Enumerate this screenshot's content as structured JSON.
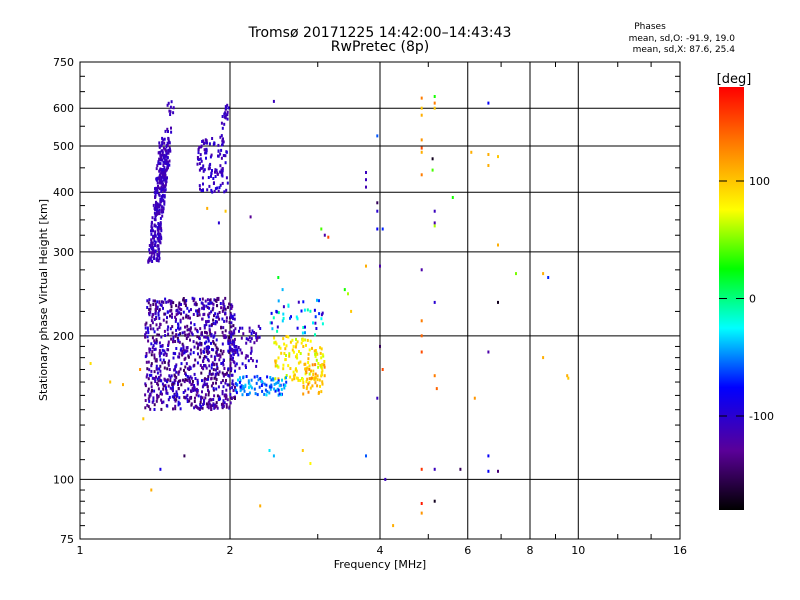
{
  "header": {
    "title": "Tromsø 20171225 14:42:00–14:43:43",
    "subtitle": "RwPretec (8p)",
    "phase_heading": "Phases",
    "stats": [
      "mean, sd,O:  -91.9, 19.0",
      "mean, sd,X:  87.6, 25.4"
    ]
  },
  "chart_data": {
    "type": "scatter",
    "title": "Tromsø 20171225 14:42:00–14:43:43",
    "subtitle": "RwPretec (8p)",
    "xlabel": "Frequency [MHz]",
    "ylabel": "Stationary phase Virtual Height [km]",
    "xscale": "log",
    "yscale": "log",
    "xlim": [
      1,
      16
    ],
    "ylim": [
      75,
      750
    ],
    "xticks": [
      1,
      2,
      4,
      6,
      8,
      10,
      16
    ],
    "yticks": [
      75,
      100,
      200,
      300,
      400,
      500,
      600,
      750
    ],
    "grid": true,
    "colorbar": {
      "label": "[deg]",
      "range": [
        -180,
        180
      ],
      "ticks": [
        100,
        0,
        -100
      ],
      "colors": [
        "#000000",
        "#5a0098",
        "#0000ff",
        "#00ffff",
        "#00ff00",
        "#ffff00",
        "#ff8000",
        "#ff0000"
      ]
    },
    "clusters": [
      {
        "x": [
          1.37,
          1.52
        ],
        "y": [
          285,
          520
        ],
        "phase": [
          -120,
          -100
        ],
        "n": 320
      },
      {
        "x": [
          1.45,
          1.55
        ],
        "y": [
          400,
          630
        ],
        "phase": [
          -120,
          -100
        ],
        "n": 40
      },
      {
        "x": [
          1.72,
          1.98
        ],
        "y": [
          400,
          520
        ],
        "phase": [
          -120,
          -95
        ],
        "n": 110
      },
      {
        "x": [
          1.9,
          2.0
        ],
        "y": [
          520,
          610
        ],
        "phase": [
          -120,
          -100
        ],
        "n": 20
      },
      {
        "x": [
          1.35,
          2.05
        ],
        "y": [
          140,
          240
        ],
        "phase": [
          -150,
          -90
        ],
        "n": 900
      },
      {
        "x": [
          2.0,
          2.3
        ],
        "y": [
          170,
          210
        ],
        "phase": [
          -130,
          -90
        ],
        "n": 70
      },
      {
        "x": [
          2.45,
          3.1
        ],
        "y": [
          160,
          200
        ],
        "phase": [
          60,
          110
        ],
        "n": 120
      },
      {
        "x": [
          2.8,
          3.1
        ],
        "y": [
          150,
          175
        ],
        "phase": [
          85,
          130
        ],
        "n": 40
      },
      {
        "x": [
          2.05,
          2.6
        ],
        "y": [
          150,
          165
        ],
        "phase": [
          -80,
          -30
        ],
        "n": 90
      },
      {
        "x": [
          2.4,
          3.1
        ],
        "y": [
          200,
          240
        ],
        "phase": [
          -110,
          0
        ],
        "n": 45
      }
    ],
    "points": [
      {
        "x": 1.05,
        "y": 175,
        "phase": 90
      },
      {
        "x": 1.15,
        "y": 160,
        "phase": 100
      },
      {
        "x": 1.22,
        "y": 158,
        "phase": 110
      },
      {
        "x": 1.32,
        "y": 170,
        "phase": 120
      },
      {
        "x": 1.34,
        "y": 134,
        "phase": 100
      },
      {
        "x": 1.39,
        "y": 95,
        "phase": 110
      },
      {
        "x": 1.45,
        "y": 105,
        "phase": -90
      },
      {
        "x": 1.62,
        "y": 112,
        "phase": -150
      },
      {
        "x": 1.8,
        "y": 370,
        "phase": 110
      },
      {
        "x": 1.9,
        "y": 345,
        "phase": -100
      },
      {
        "x": 1.96,
        "y": 365,
        "phase": 100
      },
      {
        "x": 2.2,
        "y": 355,
        "phase": -130
      },
      {
        "x": 2.3,
        "y": 88,
        "phase": 110
      },
      {
        "x": 2.4,
        "y": 115,
        "phase": -30
      },
      {
        "x": 2.45,
        "y": 112,
        "phase": -40
      },
      {
        "x": 2.5,
        "y": 265,
        "phase": 20
      },
      {
        "x": 2.55,
        "y": 250,
        "phase": -40
      },
      {
        "x": 2.45,
        "y": 620,
        "phase": -110
      },
      {
        "x": 2.8,
        "y": 115,
        "phase": 100
      },
      {
        "x": 2.9,
        "y": 108,
        "phase": 80
      },
      {
        "x": 3.05,
        "y": 335,
        "phase": 40
      },
      {
        "x": 3.1,
        "y": 325,
        "phase": -120
      },
      {
        "x": 3.15,
        "y": 322,
        "phase": 150
      },
      {
        "x": 3.4,
        "y": 250,
        "phase": 30
      },
      {
        "x": 3.45,
        "y": 245,
        "phase": 60
      },
      {
        "x": 3.5,
        "y": 225,
        "phase": 100
      },
      {
        "x": 3.75,
        "y": 440,
        "phase": -110
      },
      {
        "x": 3.75,
        "y": 425,
        "phase": -110
      },
      {
        "x": 3.75,
        "y": 410,
        "phase": -115
      },
      {
        "x": 3.75,
        "y": 280,
        "phase": 110
      },
      {
        "x": 3.75,
        "y": 112,
        "phase": -60
      },
      {
        "x": 3.95,
        "y": 525,
        "phase": -60
      },
      {
        "x": 3.95,
        "y": 380,
        "phase": -150
      },
      {
        "x": 3.95,
        "y": 365,
        "phase": -100
      },
      {
        "x": 3.95,
        "y": 335,
        "phase": -80
      },
      {
        "x": 3.95,
        "y": 148,
        "phase": -110
      },
      {
        "x": 4.0,
        "y": 280,
        "phase": -120
      },
      {
        "x": 4.0,
        "y": 190,
        "phase": -150
      },
      {
        "x": 4.05,
        "y": 170,
        "phase": 150
      },
      {
        "x": 4.05,
        "y": 335,
        "phase": -70
      },
      {
        "x": 4.1,
        "y": 100,
        "phase": -110
      },
      {
        "x": 4.25,
        "y": 80,
        "phase": 110
      },
      {
        "x": 4.85,
        "y": 630,
        "phase": 130
      },
      {
        "x": 4.85,
        "y": 600,
        "phase": 100
      },
      {
        "x": 4.85,
        "y": 580,
        "phase": 110
      },
      {
        "x": 4.85,
        "y": 515,
        "phase": 120
      },
      {
        "x": 4.85,
        "y": 495,
        "phase": 150
      },
      {
        "x": 4.85,
        "y": 485,
        "phase": 110
      },
      {
        "x": 4.85,
        "y": 435,
        "phase": 130
      },
      {
        "x": 4.85,
        "y": 275,
        "phase": -120
      },
      {
        "x": 4.85,
        "y": 215,
        "phase": 130
      },
      {
        "x": 4.85,
        "y": 200,
        "phase": 140
      },
      {
        "x": 4.85,
        "y": 185,
        "phase": 150
      },
      {
        "x": 4.85,
        "y": 105,
        "phase": 160
      },
      {
        "x": 4.85,
        "y": 89,
        "phase": 170
      },
      {
        "x": 4.85,
        "y": 85,
        "phase": 120
      },
      {
        "x": 5.15,
        "y": 635,
        "phase": 30
      },
      {
        "x": 5.15,
        "y": 615,
        "phase": 130
      },
      {
        "x": 5.15,
        "y": 600,
        "phase": 100
      },
      {
        "x": 5.1,
        "y": 470,
        "phase": -170
      },
      {
        "x": 5.1,
        "y": 445,
        "phase": 40
      },
      {
        "x": 5.15,
        "y": 365,
        "phase": -110
      },
      {
        "x": 5.15,
        "y": 345,
        "phase": -120
      },
      {
        "x": 5.15,
        "y": 340,
        "phase": 60
      },
      {
        "x": 5.15,
        "y": 235,
        "phase": -100
      },
      {
        "x": 5.15,
        "y": 165,
        "phase": 130
      },
      {
        "x": 5.2,
        "y": 155,
        "phase": 140
      },
      {
        "x": 5.15,
        "y": 105,
        "phase": -110
      },
      {
        "x": 5.15,
        "y": 90,
        "phase": -170
      },
      {
        "x": 5.6,
        "y": 390,
        "phase": 30
      },
      {
        "x": 5.8,
        "y": 105,
        "phase": -150
      },
      {
        "x": 6.1,
        "y": 485,
        "phase": 110
      },
      {
        "x": 6.2,
        "y": 148,
        "phase": 120
      },
      {
        "x": 6.6,
        "y": 615,
        "phase": -80
      },
      {
        "x": 6.6,
        "y": 480,
        "phase": 110
      },
      {
        "x": 6.6,
        "y": 455,
        "phase": 110
      },
      {
        "x": 6.6,
        "y": 185,
        "phase": -120
      },
      {
        "x": 6.6,
        "y": 112,
        "phase": -80
      },
      {
        "x": 6.6,
        "y": 104,
        "phase": -80
      },
      {
        "x": 6.9,
        "y": 475,
        "phase": 100
      },
      {
        "x": 6.9,
        "y": 310,
        "phase": 110
      },
      {
        "x": 6.9,
        "y": 235,
        "phase": -170
      },
      {
        "x": 6.9,
        "y": 104,
        "phase": -140
      },
      {
        "x": 7.5,
        "y": 270,
        "phase": 50
      },
      {
        "x": 8.5,
        "y": 270,
        "phase": 110
      },
      {
        "x": 8.7,
        "y": 265,
        "phase": -70
      },
      {
        "x": 8.5,
        "y": 180,
        "phase": 110
      },
      {
        "x": 9.5,
        "y": 165,
        "phase": 110
      },
      {
        "x": 9.55,
        "y": 163,
        "phase": 100
      }
    ]
  }
}
